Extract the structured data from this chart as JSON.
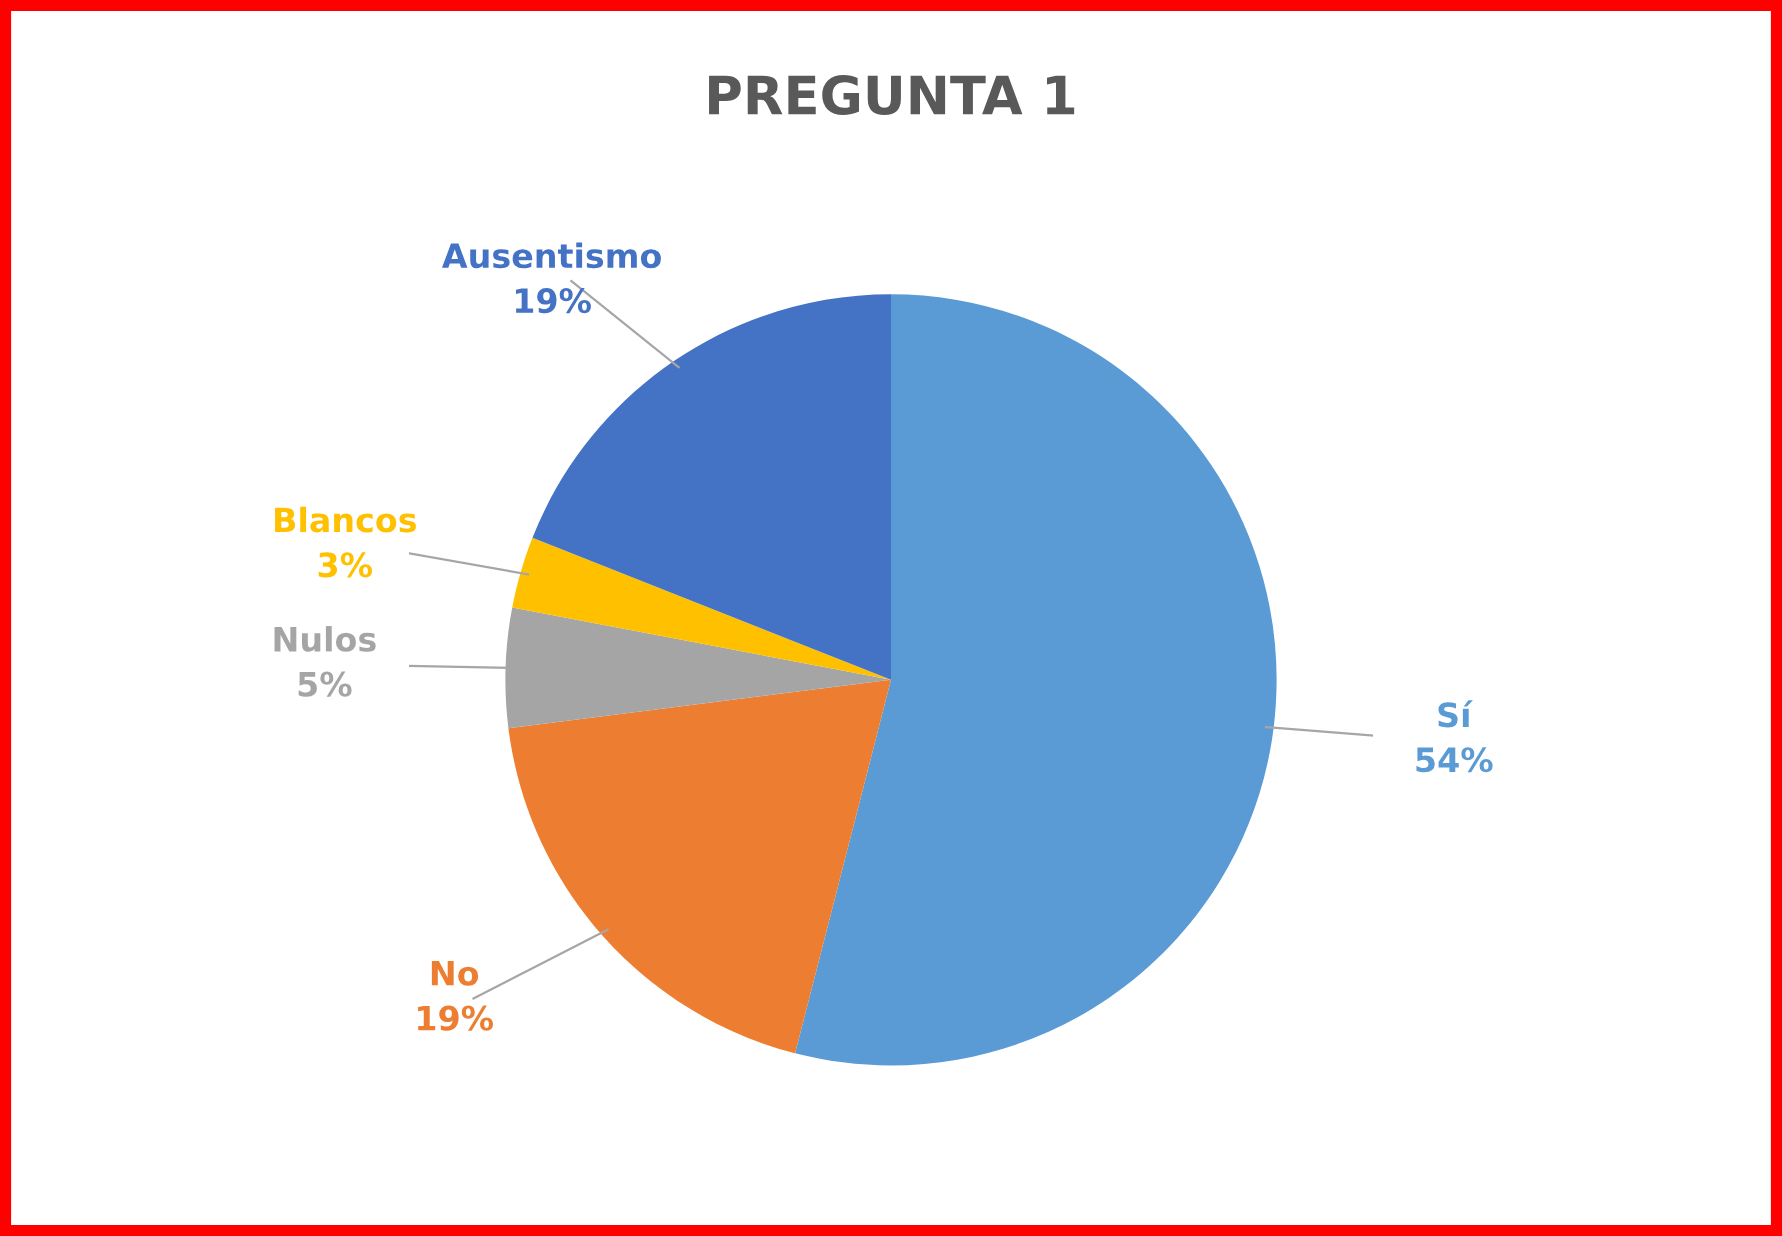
{
  "chart_data": {
    "type": "pie",
    "title": "PREGUNTA 1",
    "categories": [
      "Sí",
      "No",
      "Nulos",
      "Blancos",
      "Ausentismo"
    ],
    "values": [
      54,
      19,
      5,
      3,
      19
    ],
    "colors": [
      "#5b9bd5",
      "#ed7d31",
      "#a5a5a5",
      "#ffc000",
      "#4472c4"
    ],
    "value_labels": [
      "54%",
      "19%",
      "5%",
      "3%",
      "19%"
    ],
    "legend": false
  }
}
